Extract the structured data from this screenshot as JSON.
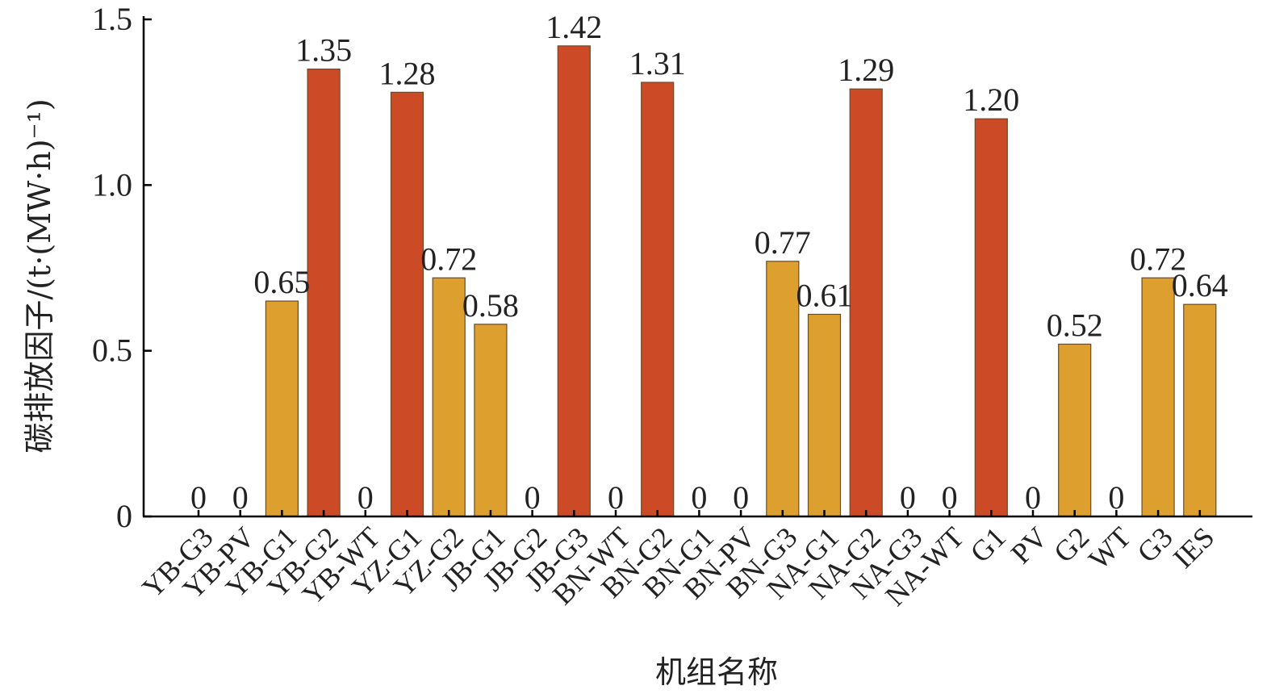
{
  "chart_data": {
    "type": "bar",
    "title": "",
    "xlabel": "机组名称",
    "ylabel": "碳排放因子/(t·(MW·h)⁻¹)",
    "ylim": [
      0,
      1.5
    ],
    "yticks": [
      0,
      0.5,
      1.0,
      1.5
    ],
    "ytick_labels": [
      "0",
      "0.5",
      "1.0",
      "1.5"
    ],
    "categories": [
      "YB-G3",
      "YB-PV",
      "YB-G1",
      "YB-G2",
      "YB-WT",
      "YZ-G1",
      "YZ-G2",
      "JB-G1",
      "JB-G2",
      "JB-G3",
      "BN-WT",
      "BN-G2",
      "BN-G1",
      "BN-PV",
      "BN-G3",
      "NA-G1",
      "NA-G2",
      "NA-G3",
      "NA-WT",
      "G1",
      "PV",
      "G2",
      "WT",
      "G3",
      "IES"
    ],
    "values": [
      0,
      0,
      0.65,
      1.35,
      0,
      1.28,
      0.72,
      0.58,
      0,
      1.42,
      0,
      1.31,
      0,
      0,
      0.77,
      0.61,
      1.29,
      0,
      0,
      1.2,
      0,
      0.52,
      0,
      0.72,
      0.64
    ],
    "value_labels": [
      "0",
      "0",
      "0.65",
      "1.35",
      "0",
      "1.28",
      "0.72",
      "0.58",
      "0",
      "1.42",
      "0",
      "1.31",
      "0",
      "0",
      "0.77",
      "0.61",
      "1.29",
      "0",
      "0",
      "1.20",
      "0",
      "0.52",
      "0",
      "0.72",
      "0.64"
    ],
    "bar_colors": [
      "#DDA02E",
      "#DDA02E",
      "#DDA02E",
      "#CC4A25",
      "#DDA02E",
      "#CC4A25",
      "#DDA02E",
      "#DDA02E",
      "#DDA02E",
      "#CC4A25",
      "#DDA02E",
      "#CC4A25",
      "#DDA02E",
      "#DDA02E",
      "#DDA02E",
      "#DDA02E",
      "#CC4A25",
      "#DDA02E",
      "#DDA02E",
      "#CC4A25",
      "#DDA02E",
      "#DDA02E",
      "#DDA02E",
      "#DDA02E",
      "#DDA02E"
    ],
    "colors": {
      "high": "#CC4A25",
      "medium": "#DDA02E"
    },
    "grid": false,
    "legend": "none"
  }
}
